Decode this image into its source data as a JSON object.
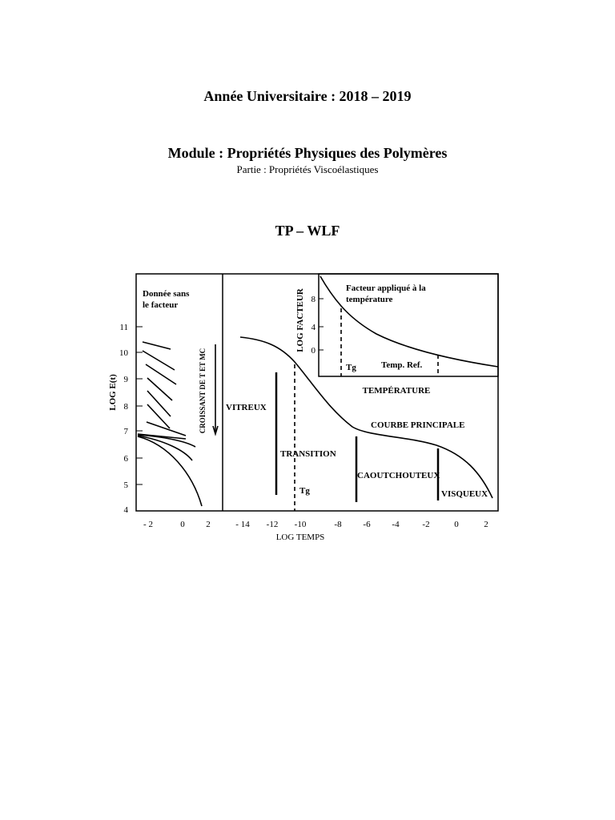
{
  "header": {
    "year": "Année Universitaire : 2018 – 2019",
    "module": "Module : Propriétés Physiques des Polymères",
    "part": "Partie : Propriétés Viscoélastiques",
    "title": "TP – WLF"
  },
  "figure": {
    "y_label": "LOG E(t)",
    "y_ticks": [
      "11",
      "10",
      "9",
      "8",
      "7",
      "6",
      "5",
      "4"
    ],
    "left_x_ticks": [
      "- 2",
      "0",
      "2"
    ],
    "right_x_ticks": [
      "- 14",
      "-12",
      "-10",
      "-8",
      "-6",
      "-4",
      "-2",
      "0",
      "2"
    ],
    "x_label": "LOG TEMPS",
    "left_note": [
      "Donnée sans",
      "le facteur"
    ],
    "arrow_label": "CROISSANT DE T ET MC",
    "regions": {
      "glassy": "VITREUX",
      "transition": "TRANSITION",
      "rubbery": "CAOUTCHOUTEUX",
      "viscous": "VISQUEUX",
      "master": "COURBE PRINCIPALE",
      "tg": "Tg"
    },
    "inset": {
      "title": [
        "Facteur appliqué à la",
        "température"
      ],
      "y_label": "LOG FACTEUR",
      "y_ticks": [
        "8",
        "4",
        "0"
      ],
      "tg": "Tg",
      "ref": "Temp. Ref.",
      "x_label": "TEMPÉRATURE"
    }
  }
}
